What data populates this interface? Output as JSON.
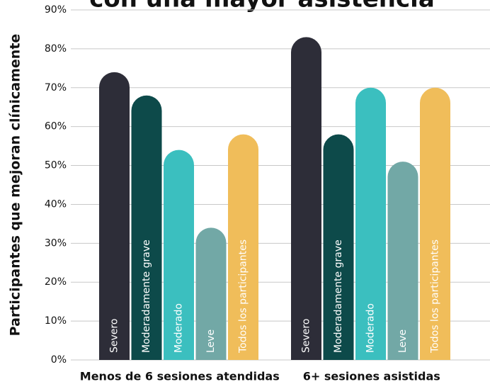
{
  "chart_data": {
    "type": "bar",
    "title": "con una mayor asistencia",
    "ylabel": "Participantes que mejoran clínicamente",
    "categories": [
      "Menos de 6 sesiones atendidas",
      "6+ sesiones asistidas"
    ],
    "series": [
      {
        "name": "Severo",
        "color": "#2d2d38",
        "values": [
          74,
          83
        ]
      },
      {
        "name": "Moderadamente grave",
        "color": "#0d4a4a",
        "values": [
          68,
          58
        ]
      },
      {
        "name": "Moderado",
        "color": "#3bbfbf",
        "values": [
          54,
          70
        ]
      },
      {
        "name": "Leve",
        "color": "#72a8a6",
        "values": [
          34,
          51
        ]
      },
      {
        "name": "Todos los participantes",
        "color": "#f0bd5a",
        "values": [
          58,
          70
        ]
      }
    ],
    "ylim": [
      0,
      90
    ],
    "yticks": [
      {
        "value": 0,
        "label": "0%"
      },
      {
        "value": 10,
        "label": "10%"
      },
      {
        "value": 20,
        "label": "20%"
      },
      {
        "value": 30,
        "label": "30%"
      },
      {
        "value": 40,
        "label": "40%"
      },
      {
        "value": 50,
        "label": "50%"
      },
      {
        "value": 60,
        "label": "60%"
      },
      {
        "value": 70,
        "label": "70%"
      },
      {
        "value": 80,
        "label": "80%"
      },
      {
        "value": 90,
        "label": "90%"
      }
    ],
    "grid": true
  }
}
